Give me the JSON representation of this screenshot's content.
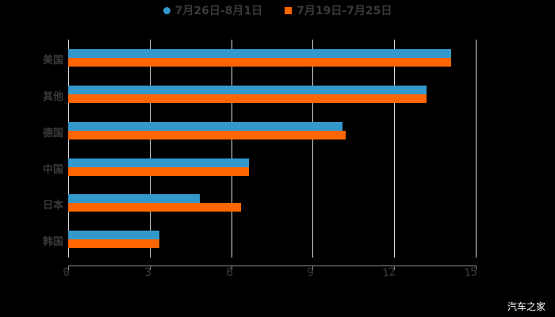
{
  "legend": [
    {
      "label": "7月26日-8月1日",
      "color": "#3399cc",
      "shape": "circle"
    },
    {
      "label": "7月19日-7月25日",
      "color": "#ff6600",
      "shape": "square"
    }
  ],
  "watermark": "汽车之家",
  "chart_data": {
    "type": "bar",
    "orientation": "horizontal",
    "title": "",
    "xlabel": "",
    "ylabel": "",
    "categories": [
      "美国",
      "其他",
      "德国",
      "中国",
      "日本",
      "韩国"
    ],
    "series": [
      {
        "name": "7月26日-8月1日",
        "color": "#3399cc",
        "values": [
          14.1,
          13.2,
          10.1,
          6.65,
          4.85,
          3.35
        ]
      },
      {
        "name": "7月19日-7月25日",
        "color": "#ff6600",
        "values": [
          14.1,
          13.2,
          10.2,
          6.65,
          6.35,
          3.35
        ]
      }
    ],
    "xticks": [
      "0",
      "3",
      "6",
      "9",
      "12",
      "15"
    ],
    "xlim": [
      0,
      15
    ],
    "grid": true,
    "legend_position": "top"
  }
}
